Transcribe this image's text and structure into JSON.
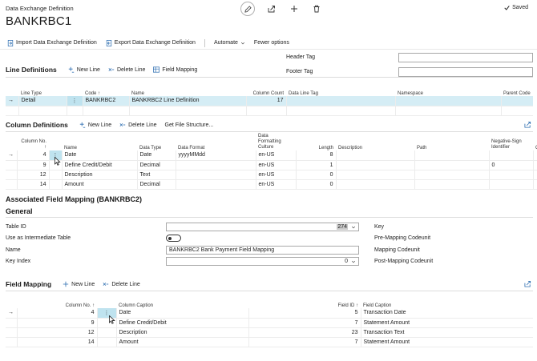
{
  "header": {
    "breadcrumb": "Data Exchange Definition",
    "title": "BANKRBC1",
    "saved_label": "Saved"
  },
  "actions": {
    "import": "Import Data Exchange Definition",
    "export": "Export Data Exchange Definition",
    "automate": "Automate",
    "fewer": "Fewer options"
  },
  "tags": {
    "header_tag": "Header Tag",
    "footer_tag": "Footer Tag"
  },
  "line_definitions": {
    "title": "Line Definitions",
    "new_line": "New Line",
    "delete_line": "Delete Line",
    "field_mapping": "Field Mapping",
    "columns": [
      "Line Type",
      "Code ↑",
      "Name",
      "Column Count",
      "Data Line Tag",
      "Namespace",
      "Parent Code"
    ],
    "rows": [
      {
        "line_type": "Detail",
        "code": "BANKRBC2",
        "name": "BANKRBC2 Line Definition",
        "count": "17"
      }
    ]
  },
  "column_definitions": {
    "title": "Column Definitions",
    "new_line": "New Line",
    "delete_line": "Delete Line",
    "get_file": "Get File Structure...",
    "col_no": "Column No.",
    "col_no_arrow": "↑",
    "name": "Name",
    "data_type": "Data Type",
    "data_format": "Data Format",
    "culture_1": "Data",
    "culture_2": "Formatting",
    "culture_3": "Culture",
    "length": "Length",
    "description": "Description",
    "path": "Path",
    "neg_1": "Negative-Sign",
    "neg_2": "Identifier",
    "col_cut": "Col",
    "rows": [
      {
        "no": "4",
        "name": "Date",
        "type": "Date",
        "format": "yyyyMMdd",
        "culture": "en-US",
        "length": "8",
        "neg": ""
      },
      {
        "no": "9",
        "name": "Define Credit/Debit",
        "type": "Decimal",
        "format": "",
        "culture": "en-US",
        "length": "1",
        "neg": "0"
      },
      {
        "no": "12",
        "name": "Description",
        "type": "Text",
        "format": "",
        "culture": "en-US",
        "length": "0",
        "neg": ""
      },
      {
        "no": "14",
        "name": "Amount",
        "type": "Decimal",
        "format": "",
        "culture": "en-US",
        "length": "0",
        "neg": ""
      }
    ]
  },
  "assoc": {
    "title": "Associated Field Mapping (BANKRBC2)",
    "general": "General",
    "table_id_label": "Table ID",
    "table_id_value": "274",
    "intermediate_label": "Use as Intermediate Table",
    "name_label": "Name",
    "name_value": "BANKRBC2 Bank Payment Field Mapping",
    "key_index_label": "Key Index",
    "key_index_value": "0",
    "key_label": "Key",
    "pre_mapping_label": "Pre-Mapping Codeunit",
    "mapping_label": "Mapping Codeunit",
    "post_mapping_label": "Post-Mapping Codeunit"
  },
  "field_mapping": {
    "title": "Field Mapping",
    "new_line": "New Line",
    "delete_line": "Delete Line",
    "col_no": "Column No. ↑",
    "col_caption": "Column Caption",
    "field_id": "Field ID ↑",
    "field_caption": "Field Caption",
    "rows": [
      {
        "no": "4",
        "caption": "Date",
        "field_id": "5",
        "field_caption": "Transaction Date"
      },
      {
        "no": "9",
        "caption": "Define Credit/Debit",
        "field_id": "7",
        "field_caption": "Statement Amount"
      },
      {
        "no": "12",
        "caption": "Description",
        "field_id": "23",
        "field_caption": "Transaction Text"
      },
      {
        "no": "14",
        "caption": "Amount",
        "field_id": "7",
        "field_caption": "Statement Amount"
      }
    ]
  }
}
